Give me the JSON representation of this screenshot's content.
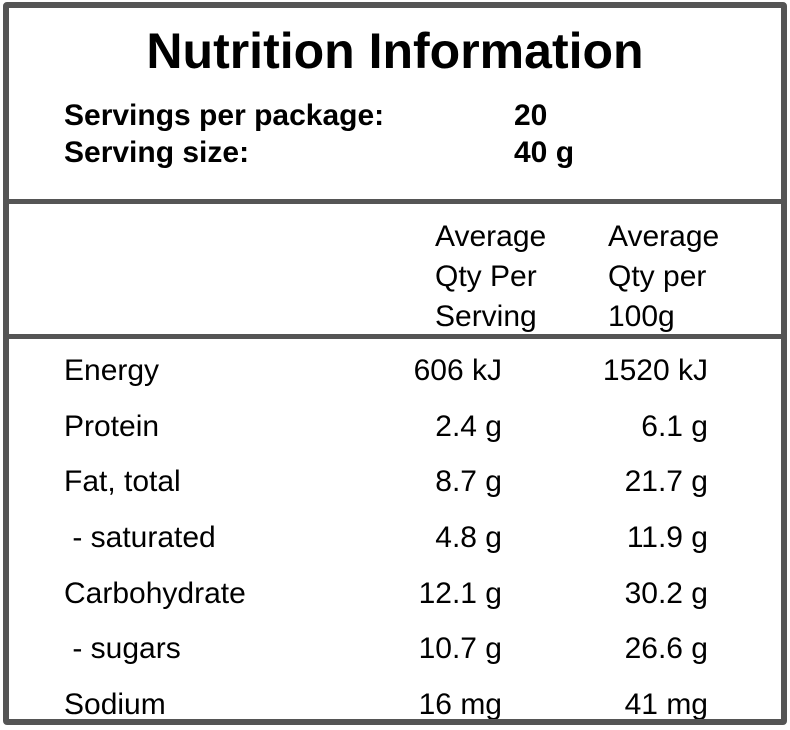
{
  "label": {
    "title": "Nutrition Information",
    "servings": [
      {
        "name": "Servings per package:",
        "value": "20"
      },
      {
        "name": "Serving size:",
        "value": "40 g"
      }
    ],
    "columns": {
      "per_serving": [
        "Average",
        "Qty Per",
        "Serving"
      ],
      "per_100g": [
        "Average",
        "Qty per",
        "100g"
      ]
    },
    "rows": [
      {
        "nutrient": "Energy",
        "per_serving": "606 kJ",
        "per_100g": "1520 kJ"
      },
      {
        "nutrient": "Protein",
        "per_serving": "2.4 g",
        "per_100g": "6.1 g"
      },
      {
        "nutrient": "Fat, total",
        "per_serving": "8.7 g",
        "per_100g": "21.7 g"
      },
      {
        "nutrient": " - saturated",
        "per_serving": "4.8 g",
        "per_100g": "11.9 g"
      },
      {
        "nutrient": "Carbohydrate",
        "per_serving": "12.1 g",
        "per_100g": "30.2 g"
      },
      {
        "nutrient": " - sugars",
        "per_serving": "10.7 g",
        "per_100g": "26.6 g"
      },
      {
        "nutrient": "Sodium",
        "per_serving": "16 mg",
        "per_100g": "41 mg"
      }
    ],
    "colors": {
      "border": "#555555",
      "text": "#000000",
      "background": "#ffffff"
    }
  }
}
